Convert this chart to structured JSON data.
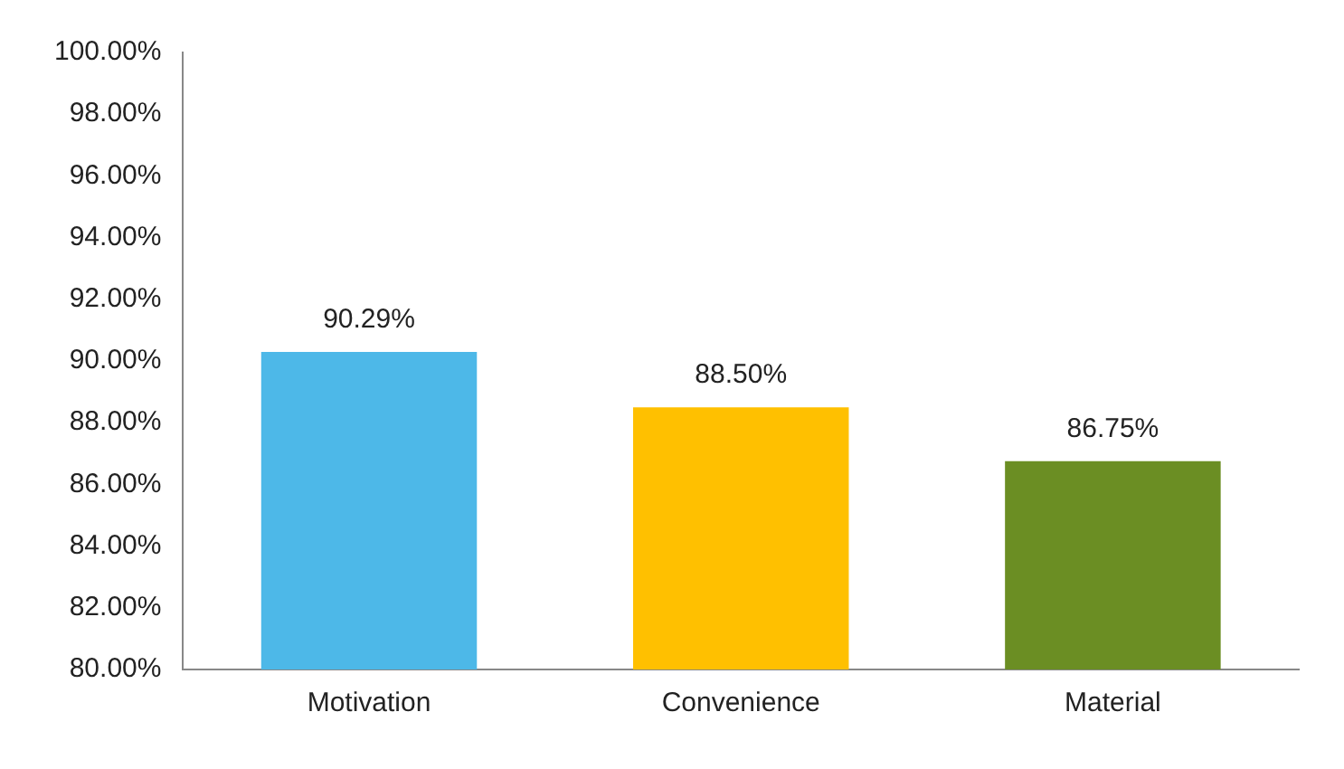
{
  "chart_data": {
    "type": "bar",
    "categories": [
      "Motivation",
      "Convenience",
      "Material"
    ],
    "values": [
      90.29,
      88.5,
      86.75
    ],
    "colors": [
      "#4db8e8",
      "#ffc000",
      "#6b8e23"
    ],
    "ylim": [
      80,
      100
    ],
    "yticks": [
      {
        "value": 80,
        "label": "80.00%"
      },
      {
        "value": 82,
        "label": "82.00%"
      },
      {
        "value": 84,
        "label": "84.00%"
      },
      {
        "value": 86,
        "label": "86.00%"
      },
      {
        "value": 88,
        "label": "88.00%"
      },
      {
        "value": 90,
        "label": "90.00%"
      },
      {
        "value": 92,
        "label": "92.00%"
      },
      {
        "value": 94,
        "label": "94.00%"
      },
      {
        "value": 96,
        "label": "96.00%"
      },
      {
        "value": 98,
        "label": "98.00%"
      },
      {
        "value": 100,
        "label": "100.00%"
      }
    ],
    "value_labels": [
      "90.29%",
      "88.50%",
      "86.75%"
    ],
    "grid": false,
    "legend": false
  }
}
